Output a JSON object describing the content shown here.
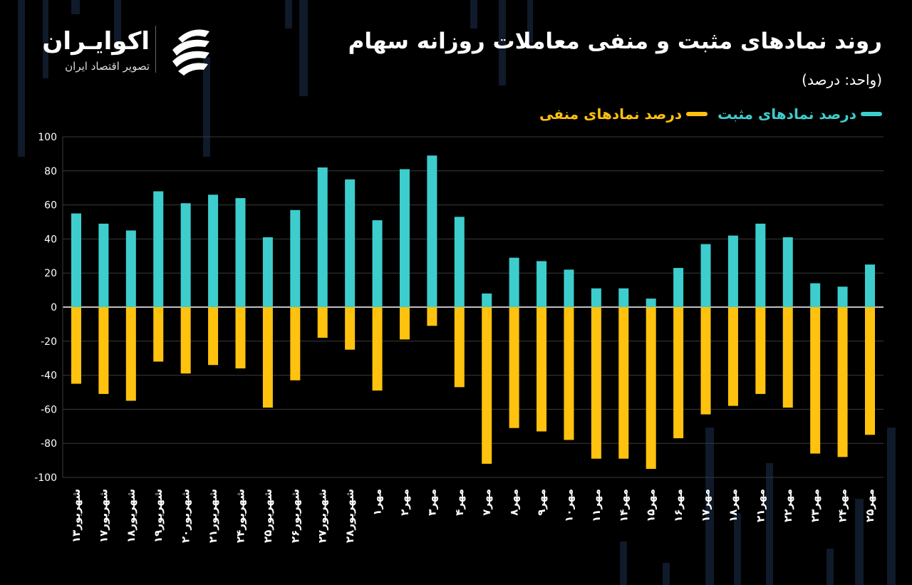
{
  "header": {
    "title": "روند نمادهای مثبت و منفی معاملات روزانه سهام",
    "unit": "(واحد: درصد)"
  },
  "logo": {
    "name": "اکوایـران",
    "tagline": "تصویر اقتصاد ایران"
  },
  "legend": {
    "positive": "درصد نمادهای مثبت",
    "negative": "درصد نمادهای منفی"
  },
  "colors": {
    "positive": "#3ECDCD",
    "negative": "#FFC20E",
    "background": "#000000"
  },
  "chart_data": {
    "type": "bar",
    "stacked": true,
    "ylim": [
      -100,
      100
    ],
    "yticks": [
      100,
      80,
      60,
      40,
      20,
      0,
      -20,
      -40,
      -60,
      -80,
      -100
    ],
    "ytick_labels": [
      "100",
      "80",
      "60",
      "40",
      "20",
      "0",
      "-20",
      "-40",
      "-60",
      "-80",
      "-100"
    ],
    "grid": true,
    "categories": [
      "شهریور۱۳",
      "شهریور۱۷",
      "شهریور۱۸",
      "شهریور۱۹",
      "شهریور۲۰",
      "شهریور۲۱",
      "شهریور۲۴",
      "شهریور۲۵",
      "شهریور۲۶",
      "شهریور۲۷",
      "شهریور۲۸",
      "مهر۱",
      "مهر۲",
      "مهر۳",
      "مهر۴",
      "مهر۷",
      "مهر۸",
      "مهر۹",
      "مهر۱۰",
      "مهر۱۱",
      "مهر۱۴",
      "مهر۱۵",
      "مهر۱۶",
      "مهر۱۷",
      "مهر۱۸",
      "مهر۲۱",
      "مهر۲۲",
      "مهر۲۳",
      "مهر۲۴",
      "مهر۲۵"
    ],
    "series": [
      {
        "name": "درصد نمادهای مثبت",
        "values": [
          55,
          49,
          45,
          68,
          61,
          66,
          64,
          41,
          57,
          82,
          75,
          51,
          81,
          89,
          53,
          8,
          29,
          27,
          22,
          11,
          11,
          5,
          23,
          37,
          42,
          49,
          41,
          14,
          12,
          25
        ]
      },
      {
        "name": "درصد نمادهای منفی",
        "values": [
          -45,
          -51,
          -55,
          -32,
          -39,
          -34,
          -36,
          -59,
          -43,
          -18,
          -25,
          -49,
          -19,
          -11,
          -47,
          -92,
          -71,
          -73,
          -78,
          -89,
          -89,
          -95,
          -77,
          -63,
          -58,
          -51,
          -59,
          -86,
          -88,
          -75
        ]
      }
    ]
  }
}
